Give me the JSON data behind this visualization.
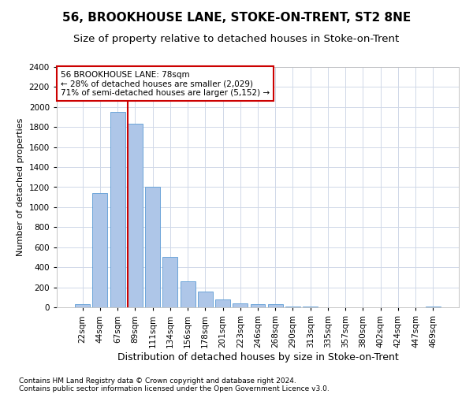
{
  "title1": "56, BROOKHOUSE LANE, STOKE-ON-TRENT, ST2 8NE",
  "title2": "Size of property relative to detached houses in Stoke-on-Trent",
  "xlabel": "Distribution of detached houses by size in Stoke-on-Trent",
  "ylabel": "Number of detached properties",
  "categories": [
    "22sqm",
    "44sqm",
    "67sqm",
    "89sqm",
    "111sqm",
    "134sqm",
    "156sqm",
    "178sqm",
    "201sqm",
    "223sqm",
    "246sqm",
    "268sqm",
    "290sqm",
    "313sqm",
    "335sqm",
    "357sqm",
    "380sqm",
    "402sqm",
    "424sqm",
    "447sqm",
    "469sqm"
  ],
  "values": [
    30,
    1140,
    1950,
    1830,
    1200,
    500,
    260,
    155,
    75,
    40,
    35,
    30,
    10,
    10,
    0,
    0,
    0,
    0,
    0,
    0,
    10
  ],
  "bar_color": "#aec6e8",
  "bar_edge_color": "#5b9bd5",
  "background_color": "#ffffff",
  "grid_color": "#d0d8e8",
  "annotation_line1": "56 BROOKHOUSE LANE: 78sqm",
  "annotation_line2": "← 28% of detached houses are smaller (2,029)",
  "annotation_line3": "71% of semi-detached houses are larger (5,152) →",
  "annotation_box_color": "#ffffff",
  "annotation_box_edge": "#cc0000",
  "vline_color": "#cc0000",
  "ylim": [
    0,
    2400
  ],
  "yticks": [
    0,
    200,
    400,
    600,
    800,
    1000,
    1200,
    1400,
    1600,
    1800,
    2000,
    2200,
    2400
  ],
  "footer1": "Contains HM Land Registry data © Crown copyright and database right 2024.",
  "footer2": "Contains public sector information licensed under the Open Government Licence v3.0.",
  "title1_fontsize": 11,
  "title2_fontsize": 9.5,
  "xlabel_fontsize": 9,
  "ylabel_fontsize": 8,
  "tick_fontsize": 7.5,
  "annotation_fontsize": 7.5,
  "footer_fontsize": 6.5
}
